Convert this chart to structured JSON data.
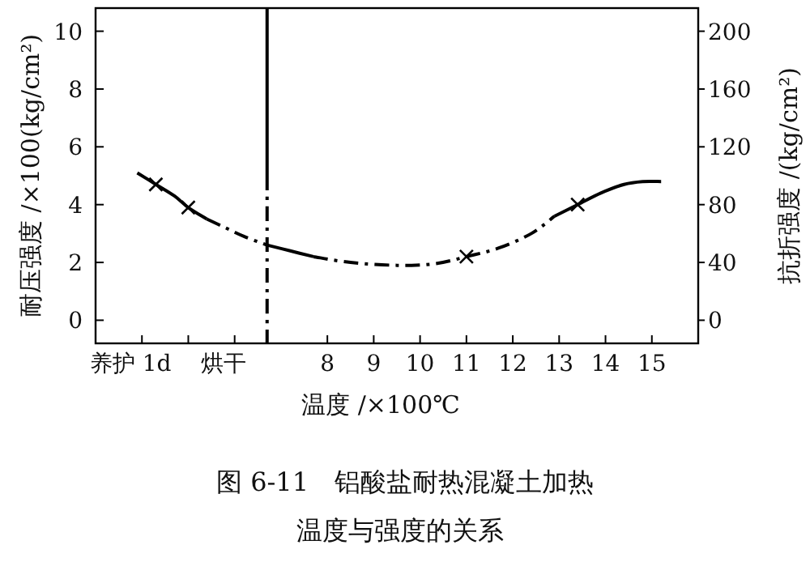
{
  "chart_data": {
    "type": "line",
    "title": "图 6-11　铝酸盐耐热混凝土加热",
    "subtitle": "温度与强度的关系",
    "xlabel": "温度 /×100℃",
    "ylabel": "耐压强度 /×100(kg/cm²)",
    "y2label": "抗折强度 /(kg/cm²)",
    "xlim": [
      3,
      16
    ],
    "xticks": [
      {
        "value": 4,
        "label": "养护 1d"
      },
      {
        "value": 5,
        "label": null
      },
      {
        "value": 6,
        "label": "烘干"
      },
      8,
      9,
      10,
      11,
      12,
      13,
      14,
      15
    ],
    "ylim": [
      -0.8,
      10.8
    ],
    "yticks": [
      0,
      2,
      4,
      6,
      8,
      10
    ],
    "y2lim": [
      -16,
      216
    ],
    "y2ticks": [
      0,
      40,
      80,
      120,
      160,
      200
    ],
    "grid": false,
    "series": [
      {
        "color": "#000000",
        "line_style": "solid",
        "marker": "none",
        "x": [
          6.7,
          6.7
        ],
        "values": [
          10.8,
          5
        ]
      },
      {
        "color": "#000000",
        "line_style": "dashed",
        "marker": "none",
        "x": [
          6.7,
          6.7
        ],
        "values": [
          5,
          -0.8
        ]
      },
      {
        "color": "#000000",
        "line_style": "solid",
        "marker": "none",
        "x": [
          3.9,
          4.3,
          4.7,
          5.0,
          5.4
        ],
        "values": [
          5.1,
          4.7,
          4.3,
          3.9,
          3.5
        ]
      },
      {
        "color": "#000000",
        "line_style": "dashed",
        "marker": "none",
        "x": [
          5.4,
          5.8,
          6.2,
          6.7
        ],
        "values": [
          3.5,
          3.2,
          2.9,
          2.6
        ]
      },
      {
        "color": "#000000",
        "line_style": "solid",
        "marker": "none",
        "x": [
          6.7,
          7.2,
          7.7
        ],
        "values": [
          2.6,
          2.4,
          2.2
        ]
      },
      {
        "color": "#000000",
        "line_style": "dashed",
        "marker": "none",
        "x": [
          7.7,
          8.5,
          9.5,
          10.3,
          11,
          11.7,
          12.4,
          12.9
        ],
        "values": [
          2.2,
          2.0,
          1.9,
          1.95,
          2.2,
          2.5,
          3.0,
          3.6
        ]
      },
      {
        "color": "#000000",
        "line_style": "solid",
        "marker": "none",
        "x": [
          12.9,
          13.4,
          13.9,
          14.4,
          14.8,
          15.2
        ],
        "values": [
          3.6,
          4.0,
          4.4,
          4.7,
          4.8,
          4.8
        ]
      },
      {
        "type": "scatter",
        "color": "#000000",
        "marker": "cross",
        "x": [
          4.3,
          5.0,
          11,
          13.4
        ],
        "values": [
          4.7,
          3.9,
          2.2,
          4.0
        ]
      }
    ]
  }
}
